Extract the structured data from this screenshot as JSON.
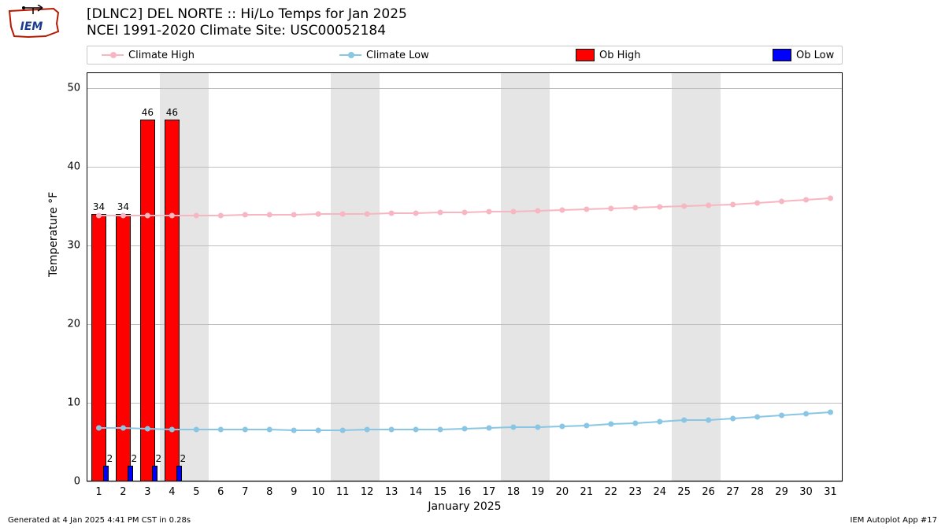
{
  "title_line1": "[DLNC2] DEL NORTE :: Hi/Lo Temps for Jan 2025",
  "title_line2": "NCEI 1991-2020 Climate Site: USC00052184",
  "logo": {
    "iem_text": "IEM",
    "outline_color": "#b51a00",
    "text_color": "#1a3a8f"
  },
  "legend": {
    "items": [
      {
        "label": "Climate High",
        "type": "line",
        "color": "#f7b6c2",
        "marker": "dot"
      },
      {
        "label": "Climate Low",
        "type": "line",
        "color": "#88c6e4",
        "marker": "dot"
      },
      {
        "label": "Ob High",
        "type": "box",
        "color": "#ff0000"
      },
      {
        "label": "Ob Low",
        "type": "box",
        "color": "#0000ff"
      }
    ]
  },
  "chart": {
    "type": "bar+line",
    "x_days": [
      1,
      2,
      3,
      4,
      5,
      6,
      7,
      8,
      9,
      10,
      11,
      12,
      13,
      14,
      15,
      16,
      17,
      18,
      19,
      20,
      21,
      22,
      23,
      24,
      25,
      26,
      27,
      28,
      29,
      30,
      31
    ],
    "xlim": [
      0.5,
      31.5
    ],
    "ylim": [
      0,
      52
    ],
    "yticks": [
      0,
      10,
      20,
      30,
      40,
      50
    ],
    "xlabel": "January 2025",
    "ylabel": "Temperature °F",
    "weekend_shade_days": [
      [
        4,
        5
      ],
      [
        11,
        12
      ],
      [
        18,
        19
      ],
      [
        25,
        26
      ]
    ],
    "shade_color": "#e5e5e5",
    "grid_color": "#bfbfbf",
    "border_color": "#000000",
    "climate_high": {
      "color": "#f7b6c2",
      "marker_radius": 3.5,
      "line_width": 2,
      "values": [
        33.8,
        33.8,
        33.8,
        33.8,
        33.8,
        33.8,
        33.9,
        33.9,
        33.9,
        34.0,
        34.0,
        34.0,
        34.1,
        34.1,
        34.2,
        34.2,
        34.3,
        34.3,
        34.4,
        34.5,
        34.6,
        34.7,
        34.8,
        34.9,
        35.0,
        35.1,
        35.2,
        35.4,
        35.6,
        35.8,
        36.0
      ]
    },
    "climate_low": {
      "color": "#88c6e4",
      "marker_radius": 3.5,
      "line_width": 2,
      "values": [
        6.8,
        6.8,
        6.7,
        6.6,
        6.6,
        6.6,
        6.6,
        6.6,
        6.5,
        6.5,
        6.5,
        6.6,
        6.6,
        6.6,
        6.6,
        6.7,
        6.8,
        6.9,
        6.9,
        7.0,
        7.1,
        7.3,
        7.4,
        7.6,
        7.8,
        7.8,
        8.0,
        8.2,
        8.4,
        8.6,
        8.8
      ]
    },
    "ob_high": {
      "color": "#ff0000",
      "bar_half_width_days": 0.3,
      "points": [
        {
          "day": 1,
          "value": 34
        },
        {
          "day": 2,
          "value": 34
        },
        {
          "day": 3,
          "value": 46
        },
        {
          "day": 4,
          "value": 46
        }
      ]
    },
    "ob_low": {
      "color": "#0000ff",
      "bar_half_width_days": 0.12,
      "offset_days": 0.3,
      "points": [
        {
          "day": 1,
          "value": 2
        },
        {
          "day": 2,
          "value": 2
        },
        {
          "day": 3,
          "value": 2
        },
        {
          "day": 4,
          "value": 2
        }
      ]
    }
  },
  "footer_left": "Generated at 4 Jan 2025 4:41 PM CST in 0.28s",
  "footer_right": "IEM Autoplot App #17"
}
